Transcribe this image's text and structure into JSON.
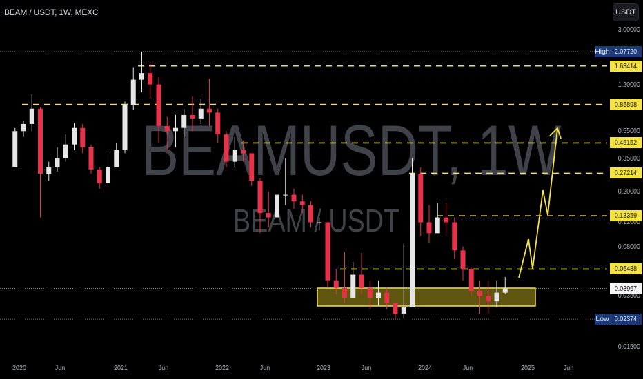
{
  "header": {
    "title": "BEAM / USDT, 1W, MEXC",
    "currency_button": "USDT"
  },
  "watermark": {
    "symbol_line": "BEAMUSDT, 1W",
    "pair_line": "BEAM / USDT"
  },
  "colors": {
    "up": "#e6e6e6",
    "down": "#e8324a",
    "levels": "#f5e342",
    "zone_fill": "#6e6410",
    "projection": "#f5e342",
    "high_low_label": "#1c3a78"
  },
  "chart_data": {
    "type": "candlestick",
    "title": "BEAM / USDT, 1W, MEXC",
    "y_scale": "log",
    "ylim": [
      0.0116,
      4.9
    ],
    "grid": false,
    "x_ticks": [
      "2020",
      "Jun",
      "2021",
      "Jun",
      "2022",
      "Jun",
      "2023",
      "Jun",
      "2024",
      "Jun",
      "2025",
      "Jun"
    ],
    "y_ticks": [
      "3.00000",
      "1.20000",
      "0.55000",
      "0.35000",
      "0.20000",
      "0.12000",
      "0.08000",
      "0.03500",
      "0.01500"
    ],
    "y_tick_values": [
      3.0,
      1.2,
      0.55,
      0.35,
      0.2,
      0.12,
      0.08,
      0.035,
      0.015
    ],
    "candles_ohlc_approx": [
      [
        "2019-12",
        0.3,
        0.58,
        0.3,
        0.55
      ],
      [
        "2020-01",
        0.55,
        0.65,
        0.5,
        0.62
      ],
      [
        "2020-02",
        0.62,
        1.02,
        0.55,
        0.8
      ],
      [
        "2020-03",
        0.8,
        0.82,
        0.13,
        0.27
      ],
      [
        "2020-04",
        0.27,
        0.33,
        0.24,
        0.3
      ],
      [
        "2020-05",
        0.3,
        0.42,
        0.28,
        0.35
      ],
      [
        "2020-06",
        0.35,
        0.52,
        0.33,
        0.44
      ],
      [
        "2020-07",
        0.44,
        0.63,
        0.4,
        0.58
      ],
      [
        "2020-08",
        0.58,
        0.62,
        0.38,
        0.42
      ],
      [
        "2020-09",
        0.42,
        0.44,
        0.27,
        0.29
      ],
      [
        "2020-10",
        0.29,
        0.3,
        0.21,
        0.23
      ],
      [
        "2020-11",
        0.23,
        0.38,
        0.22,
        0.3
      ],
      [
        "2020-12",
        0.3,
        0.45,
        0.3,
        0.4
      ],
      [
        "2021-01",
        0.4,
        0.9,
        0.38,
        0.85
      ],
      [
        "2021-02",
        0.85,
        1.6,
        0.78,
        1.3
      ],
      [
        "2021-03",
        1.3,
        2.0772,
        1.05,
        1.45
      ],
      [
        "2021-04",
        1.45,
        1.75,
        0.95,
        1.2
      ],
      [
        "2021-05",
        1.2,
        1.35,
        0.45,
        0.6
      ],
      [
        "2021-06",
        0.6,
        0.7,
        0.4,
        0.55
      ],
      [
        "2021-07",
        0.55,
        0.72,
        0.42,
        0.58
      ],
      [
        "2021-08",
        0.58,
        0.8,
        0.5,
        0.72
      ],
      [
        "2021-09",
        0.72,
        0.98,
        0.55,
        0.68
      ],
      [
        "2021-10",
        0.68,
        0.95,
        0.62,
        0.8
      ],
      [
        "2021-11",
        0.8,
        1.32,
        0.6,
        0.75
      ],
      [
        "2021-12",
        0.75,
        0.8,
        0.45,
        0.52
      ],
      [
        "2022-01",
        0.52,
        0.55,
        0.3,
        0.33
      ],
      [
        "2022-02",
        0.33,
        0.5,
        0.3,
        0.4
      ],
      [
        "2022-03",
        0.4,
        0.47,
        0.33,
        0.38
      ],
      [
        "2022-04",
        0.38,
        0.38,
        0.22,
        0.24
      ],
      [
        "2022-05",
        0.24,
        0.25,
        0.1,
        0.14
      ],
      [
        "2022-06",
        0.14,
        0.2,
        0.11,
        0.13
      ],
      [
        "2022-07",
        0.13,
        0.3,
        0.13,
        0.19
      ],
      [
        "2022-08",
        0.19,
        0.35,
        0.16,
        0.19
      ],
      [
        "2022-09",
        0.19,
        0.21,
        0.15,
        0.17
      ],
      [
        "2022-10",
        0.17,
        0.19,
        0.14,
        0.16
      ],
      [
        "2022-11",
        0.16,
        0.17,
        0.11,
        0.12
      ],
      [
        "2022-12",
        0.12,
        0.13,
        0.105,
        0.12
      ],
      [
        "2023-01",
        0.12,
        0.12,
        0.04,
        0.045
      ],
      [
        "2023-02",
        0.045,
        0.055,
        0.036,
        0.04
      ],
      [
        "2023-03",
        0.04,
        0.073,
        0.031,
        0.034
      ],
      [
        "2023-04",
        0.034,
        0.062,
        0.035,
        0.05
      ],
      [
        "2023-05",
        0.05,
        0.072,
        0.036,
        0.04
      ],
      [
        "2023-06",
        0.04,
        0.045,
        0.028,
        0.034
      ],
      [
        "2023-07",
        0.034,
        0.045,
        0.03,
        0.037
      ],
      [
        "2023-08",
        0.037,
        0.04,
        0.028,
        0.031
      ],
      [
        "2023-09",
        0.031,
        0.031,
        0.02374,
        0.026
      ],
      [
        "2023-10",
        0.026,
        0.084,
        0.024,
        0.029
      ],
      [
        "2023-11",
        0.029,
        0.35,
        0.029,
        0.27
      ],
      [
        "2023-12",
        0.27,
        0.3,
        0.095,
        0.12
      ],
      [
        "2024-01",
        0.12,
        0.16,
        0.085,
        0.1
      ],
      [
        "2024-02",
        0.1,
        0.165,
        0.1,
        0.13
      ],
      [
        "2024-03",
        0.13,
        0.165,
        0.1,
        0.12
      ],
      [
        "2024-04",
        0.12,
        0.13,
        0.065,
        0.075
      ],
      [
        "2024-05",
        0.075,
        0.08,
        0.045,
        0.055
      ],
      [
        "2024-06",
        0.055,
        0.056,
        0.035,
        0.038
      ],
      [
        "2024-07",
        0.038,
        0.045,
        0.026,
        0.035
      ],
      [
        "2024-08",
        0.035,
        0.045,
        0.026,
        0.032
      ],
      [
        "2024-09",
        0.032,
        0.045,
        0.029,
        0.037
      ],
      [
        "2024-10",
        0.037,
        0.048,
        0.036,
        0.03967
      ]
    ],
    "horizontal_levels": [
      "1.63414",
      "0.85898",
      "0.45152",
      "0.27214",
      "0.13359",
      "0.05488"
    ],
    "high": {
      "label": "High",
      "value": "2.07720"
    },
    "low": {
      "label": "Low",
      "value": "0.02374"
    },
    "last_price": "0.03967",
    "support_zone": [
      0.0305,
      0.0392
    ],
    "annotations": [
      "support zone box",
      "yellow zig-zag projection arrow upward"
    ]
  }
}
